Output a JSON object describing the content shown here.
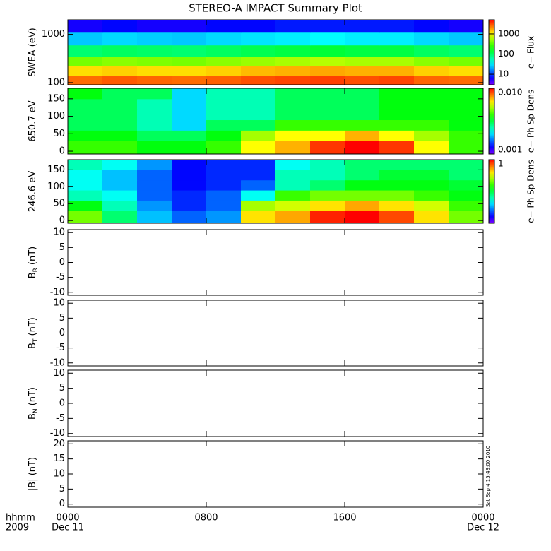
{
  "chart_data": [
    {
      "type": "heatmap",
      "title": "STEREO-A IMPACT Summary Plot",
      "ylabel": "SWEA (eV)",
      "log": true,
      "ylim": [
        90,
        2000
      ],
      "yticks": [
        100,
        1000
      ],
      "xlim": [
        0,
        24
      ],
      "x_bins": [
        0,
        2,
        4,
        6,
        8,
        10,
        12,
        14,
        16,
        18,
        20,
        22,
        24
      ],
      "y_bins": [
        90,
        140,
        220,
        350,
        600,
        1100,
        2000
      ],
      "z": [
        [
          2500,
          2800,
          2600,
          2500,
          2700,
          3000,
          3200,
          3300,
          3000,
          3200,
          2600,
          2500
        ],
        [
          1200,
          1300,
          1200,
          1200,
          1300,
          1500,
          1600,
          1700,
          1600,
          1600,
          1300,
          1200
        ],
        [
          400,
          450,
          420,
          400,
          450,
          500,
          550,
          600,
          550,
          550,
          450,
          400
        ],
        [
          90,
          100,
          95,
          90,
          100,
          110,
          120,
          130,
          120,
          120,
          100,
          90
        ],
        [
          25,
          28,
          26,
          25,
          28,
          30,
          32,
          35,
          32,
          32,
          28,
          25
        ],
        [
          6,
          7,
          6,
          6,
          7,
          7,
          8,
          8,
          8,
          8,
          7,
          6
        ]
      ],
      "clim": [
        3,
        5000
      ],
      "clog": true,
      "cticks": [
        10,
        100,
        1000
      ],
      "clabel": "e− Flux"
    },
    {
      "type": "heatmap",
      "ylabel": "650.7 eV",
      "ylim": [
        -8,
        180
      ],
      "yticks": [
        0,
        50,
        100,
        150
      ],
      "xlim": [
        0,
        24
      ],
      "x_bins": [
        0,
        2,
        4,
        6,
        8,
        10,
        12,
        14,
        16,
        18,
        20,
        22,
        24
      ],
      "y_bins": [
        -8,
        30,
        60,
        90,
        120,
        150,
        180
      ],
      "z": [
        [
          0.004,
          0.004,
          0.0035,
          0.0035,
          0.004,
          0.006,
          0.007,
          0.009,
          0.01,
          0.009,
          0.006,
          0.004
        ],
        [
          0.0035,
          0.0035,
          0.003,
          0.003,
          0.0035,
          0.005,
          0.006,
          0.006,
          0.007,
          0.006,
          0.005,
          0.004
        ],
        [
          0.003,
          0.003,
          0.0025,
          0.002,
          0.003,
          0.003,
          0.004,
          0.004,
          0.004,
          0.004,
          0.004,
          0.0035
        ],
        [
          0.003,
          0.003,
          0.0025,
          0.002,
          0.0025,
          0.0025,
          0.003,
          0.003,
          0.003,
          0.0035,
          0.0035,
          0.0035
        ],
        [
          0.003,
          0.003,
          0.0025,
          0.002,
          0.0025,
          0.0025,
          0.003,
          0.003,
          0.003,
          0.0035,
          0.0035,
          0.0035
        ],
        [
          0.0035,
          0.003,
          0.003,
          0.002,
          0.0025,
          0.0025,
          0.003,
          0.003,
          0.003,
          0.0035,
          0.0035,
          0.0035
        ]
      ],
      "clim": [
        0.001,
        0.01
      ],
      "clog": true,
      "cticks": [
        0.001,
        {
          "value": 0.01,
          "label": "0.010"
        }
      ],
      "clabel": "e− Ph Sp Dens"
    },
    {
      "type": "heatmap",
      "ylabel": "246.6 eV",
      "ylim": [
        -8,
        180
      ],
      "yticks": [
        0,
        50,
        100,
        150
      ],
      "xlim": [
        0,
        24
      ],
      "x_bins": [
        0,
        2,
        4,
        6,
        8,
        10,
        12,
        14,
        16,
        18,
        20,
        22,
        24
      ],
      "y_bins": [
        -8,
        30,
        60,
        90,
        120,
        150,
        180
      ],
      "z": [
        [
          0.3,
          0.15,
          0.08,
          0.06,
          0.07,
          0.5,
          0.6,
          0.9,
          1,
          0.8,
          0.5,
          0.3
        ],
        [
          0.2,
          0.12,
          0.07,
          0.05,
          0.06,
          0.35,
          0.4,
          0.5,
          0.6,
          0.5,
          0.4,
          0.25
        ],
        [
          0.12,
          0.1,
          0.06,
          0.05,
          0.06,
          0.1,
          0.25,
          0.3,
          0.3,
          0.3,
          0.25,
          0.2
        ],
        [
          0.1,
          0.08,
          0.06,
          0.045,
          0.05,
          0.06,
          0.12,
          0.15,
          0.2,
          0.2,
          0.2,
          0.18
        ],
        [
          0.1,
          0.08,
          0.06,
          0.045,
          0.05,
          0.05,
          0.12,
          0.12,
          0.15,
          0.18,
          0.18,
          0.15
        ],
        [
          0.12,
          0.1,
          0.07,
          0.045,
          0.05,
          0.05,
          0.1,
          0.12,
          0.15,
          0.15,
          0.15,
          0.15
        ]
      ],
      "clim": [
        0.03,
        1
      ],
      "clog": true,
      "cticks": [
        1
      ],
      "clabel": "e− Ph Sp Dens"
    },
    {
      "type": "line",
      "ylabel": "B",
      "ylabel_sub": "R",
      "ylabel_unit": "(nT)",
      "ylim": [
        -11,
        11
      ],
      "yticks": [
        -10,
        -5,
        0,
        5,
        10
      ],
      "xlim": [
        0,
        24
      ]
    },
    {
      "type": "line",
      "ylabel": "B",
      "ylabel_sub": "T",
      "ylabel_unit": "(nT)",
      "ylim": [
        -11,
        11
      ],
      "yticks": [
        -10,
        -5,
        0,
        5,
        10
      ],
      "xlim": [
        0,
        24
      ]
    },
    {
      "type": "line",
      "ylabel": "B",
      "ylabel_sub": "N",
      "ylabel_unit": "(nT)",
      "ylim": [
        -11,
        11
      ],
      "yticks": [
        -10,
        -5,
        0,
        5,
        10
      ],
      "xlim": [
        0,
        24
      ]
    },
    {
      "type": "line",
      "ylabel": "|B| (nT)",
      "ylim": [
        -1,
        21
      ],
      "yticks": [
        0,
        5,
        10,
        15,
        20
      ],
      "xlim": [
        0,
        24
      ],
      "xticks": [
        {
          "value": 0,
          "label": "0000"
        },
        {
          "value": 8,
          "label": "0800"
        },
        {
          "value": 16,
          "label": "1600"
        },
        {
          "value": 24,
          "label": "0000"
        }
      ],
      "date_labels": [
        {
          "value": 0,
          "label": "Dec 11"
        },
        {
          "value": 24,
          "label": "Dec 12"
        }
      ],
      "x_label_lines": [
        "hhmm",
        "2009"
      ],
      "annotation": "Sat Sep  4 15:43:00 2010"
    }
  ]
}
